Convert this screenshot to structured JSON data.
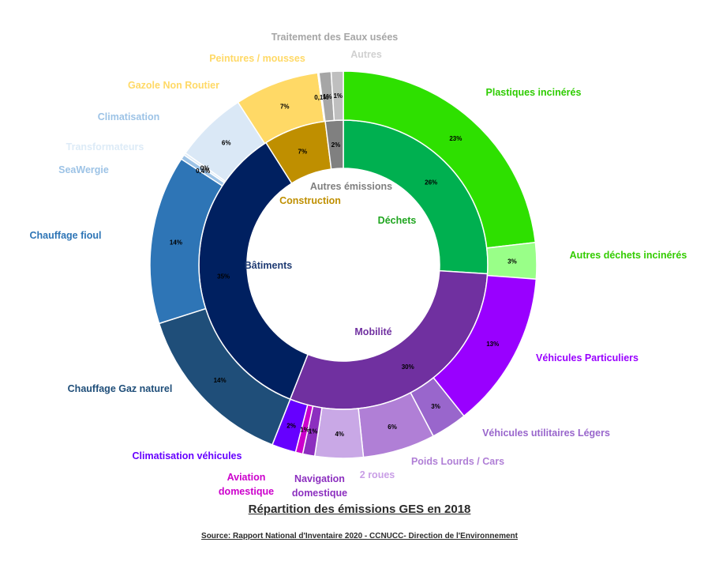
{
  "chart_data": {
    "type": "pie",
    "subtype": "sunburst-donut",
    "title": "Répartition des émissions GES en 2018",
    "source": "Source: Rapport National d'Inventaire 2020 - CCNUCC- Direction de l'Environnement",
    "inner_ring": [
      {
        "name": "Déchets",
        "value": 26,
        "label": "26%",
        "color": "#00b050",
        "text_color": "#1fa51f"
      },
      {
        "name": "Mobilité",
        "value": 30,
        "label": "30%",
        "color": "#7030a0",
        "text_color": "#7030a0"
      },
      {
        "name": "Bâtiments",
        "value": 35,
        "label": "35%",
        "color": "#002060",
        "text_color": "#1f3b73"
      },
      {
        "name": "Construction",
        "value": 7,
        "label": "7%",
        "color": "#bf8f00",
        "text_color": "#bf8f00"
      },
      {
        "name": "Autres émissions",
        "value": 2,
        "label": "2%",
        "color": "#808080",
        "text_color": "#7f7f7f"
      }
    ],
    "outer_ring": [
      {
        "name": "Plastiques incinérés",
        "value": 23,
        "label": "23%",
        "color": "#2ee000",
        "text_color": "#2ecc00"
      },
      {
        "name": "Autres déchets incinérés",
        "value": 3,
        "label": "3%",
        "color": "#99ff88",
        "text_color": "#33cc00"
      },
      {
        "name": "Véhicules Particuliers",
        "value": 13,
        "label": "13%",
        "color": "#9900ff",
        "text_color": "#9900ff"
      },
      {
        "name": "Véhicules utilitaires Légers",
        "value": 3,
        "label": "3%",
        "color": "#9966cc",
        "text_color": "#9966cc"
      },
      {
        "name": "Poids Lourds / Cars",
        "value": 6,
        "label": "6%",
        "color": "#b07fd6",
        "text_color": "#b07fd6"
      },
      {
        "name": "2 roues",
        "value": 4,
        "label": "4%",
        "color": "#c9a8e6",
        "text_color": "#c99ee6"
      },
      {
        "name": "Navigation domestique",
        "value": 1,
        "label": "1%",
        "color": "#8c2fbf",
        "text_color": "#8c2fbf"
      },
      {
        "name": "Aviation domestique",
        "value": 0.6,
        "label": "1%",
        "color": "#cc00cc",
        "text_color": "#cc00cc"
      },
      {
        "name": "Climatisation véhicules",
        "value": 2,
        "label": "2%",
        "color": "#6600ff",
        "text_color": "#6600ff"
      },
      {
        "name": "Chauffage Gaz naturel",
        "value": 14,
        "label": "14%",
        "color": "#1f4e79",
        "text_color": "#1f4e79"
      },
      {
        "name": "Chauffage fioul",
        "value": 14,
        "label": "14%",
        "color": "#2e75b6",
        "text_color": "#2e75b6"
      },
      {
        "name": "SeaWergie",
        "value": 0.4,
        "label": "0,4%",
        "color": "#9dc3e6",
        "text_color": "#9dc3e6"
      },
      {
        "name": "Transformateurs",
        "value": 0.2,
        "label": "0%",
        "color": "#ddebf7",
        "text_color": "#ddebf7"
      },
      {
        "name": "Climatisation",
        "value": 6,
        "label": "6%",
        "color": "#dae8f6",
        "text_color": "#9dc3e6"
      },
      {
        "name": "Gazole Non Routier",
        "value": 7,
        "label": "7%",
        "color": "#ffd966",
        "text_color": "#ffd966"
      },
      {
        "name": "Peintures / mousses",
        "value": 0.1,
        "label": "0,1%",
        "color": "#ffe699",
        "text_color": "#ffd966"
      },
      {
        "name": "Traitement des Eaux usées",
        "value": 1,
        "label": "1%",
        "color": "#a6a6a6",
        "text_color": "#a6a6a6"
      },
      {
        "name": "Autres",
        "value": 1,
        "label": "1%",
        "color": "#bfbfbf",
        "text_color": "#d0d0d0"
      }
    ]
  }
}
